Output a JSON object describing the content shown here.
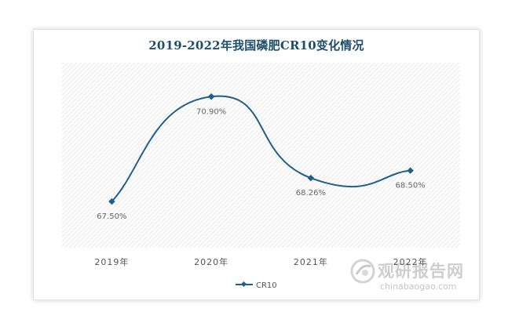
{
  "chart_data": {
    "type": "line",
    "title": "2019-2022年我国磷肥CR10变化情况",
    "categories": [
      "2019年",
      "2020年",
      "2021年",
      "2022年"
    ],
    "series": [
      {
        "name": "CR10",
        "values": [
          67.5,
          70.9,
          68.26,
          68.5
        ],
        "labels": [
          "67.50%",
          "70.90%",
          "68.26%",
          "68.50%"
        ],
        "color": "#1f5f8b"
      }
    ],
    "ylim": [
      66.0,
      72.0
    ],
    "smooth": true,
    "grid": false,
    "legend_position": "bottom"
  },
  "watermark": {
    "text_cn": "观研报告网",
    "text_en": "chinabaogao.com"
  }
}
